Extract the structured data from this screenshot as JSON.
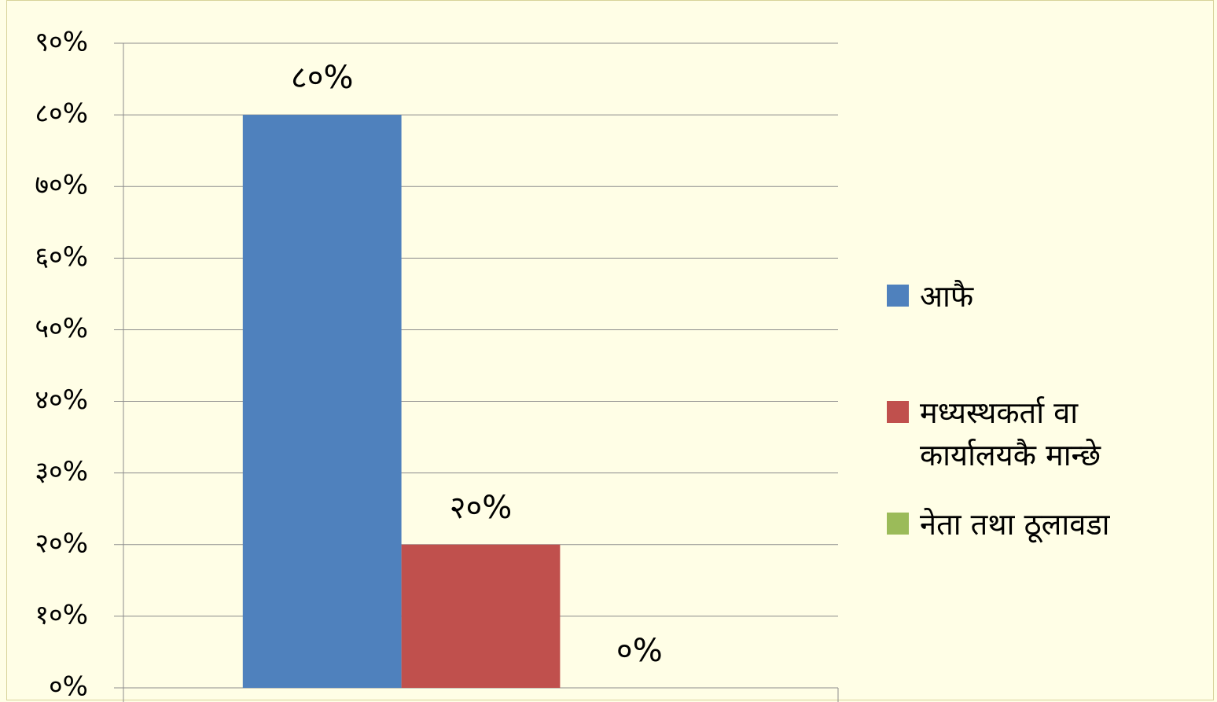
{
  "chart_data": {
    "type": "bar",
    "categories": [
      null
    ],
    "series": [
      {
        "name": "आफै",
        "color": "#4f81bd",
        "values": [
          80
        ],
        "value_labels": [
          "८०%"
        ]
      },
      {
        "name": "मध्यस्थकर्ता वा कार्यालयकै मान्छे",
        "color": "#c0504d",
        "values": [
          20
        ],
        "value_labels": [
          "२०%"
        ]
      },
      {
        "name": "नेता तथा ठूलावडा",
        "color": "#9bbb59",
        "values": [
          0
        ],
        "value_labels": [
          "०%"
        ]
      }
    ],
    "ylim": [
      0,
      90
    ],
    "yticks": [
      {
        "value": 0,
        "label": "०%"
      },
      {
        "value": 10,
        "label": "१०%"
      },
      {
        "value": 20,
        "label": "२०%"
      },
      {
        "value": 30,
        "label": "३०%"
      },
      {
        "value": 40,
        "label": "४०%"
      },
      {
        "value": 50,
        "label": "५०%"
      },
      {
        "value": 60,
        "label": "६०%"
      },
      {
        "value": 70,
        "label": "७०%"
      },
      {
        "value": 80,
        "label": "८०%"
      },
      {
        "value": 90,
        "label": "९०%"
      }
    ],
    "grid": true,
    "legend": "right"
  }
}
